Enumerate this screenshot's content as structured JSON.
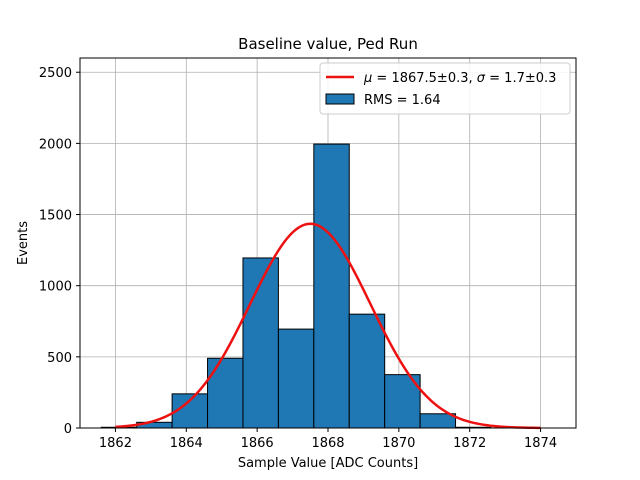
{
  "chart_data": {
    "type": "bar",
    "title": "Baseline value, Ped Run",
    "xlabel": "Sample Value [ADC Counts]",
    "ylabel": "Events",
    "xlim": [
      1861.0,
      1875.0
    ],
    "ylim": [
      0,
      2600
    ],
    "xticks": [
      1862,
      1864,
      1866,
      1868,
      1870,
      1872,
      1874
    ],
    "yticks": [
      0,
      500,
      1000,
      1500,
      2000,
      2500
    ],
    "grid": true,
    "histogram": {
      "bin_edges": [
        1861.6,
        1862.6,
        1863.6,
        1864.6,
        1865.6,
        1866.6,
        1867.6,
        1868.6,
        1869.6,
        1870.6,
        1871.6,
        1872.6
      ],
      "counts": [
        5,
        40,
        240,
        490,
        1195,
        695,
        1995,
        800,
        375,
        100,
        5
      ],
      "color": "#1f77b4",
      "edgecolor": "#000000",
      "legend": "RMS = 1.64"
    },
    "fit": {
      "type": "gaussian",
      "mu": 1867.5,
      "sigma": 1.7,
      "amplitude": 1435,
      "x_range": [
        1862.0,
        1874.0
      ],
      "color": "#ee1111",
      "legend_prefix_mu": "μ",
      "legend_mid": " = 1867.5±0.3, ",
      "legend_prefix_sigma": "σ",
      "legend_tail": " = 1.7±0.3"
    },
    "legend_position": "top-right"
  }
}
